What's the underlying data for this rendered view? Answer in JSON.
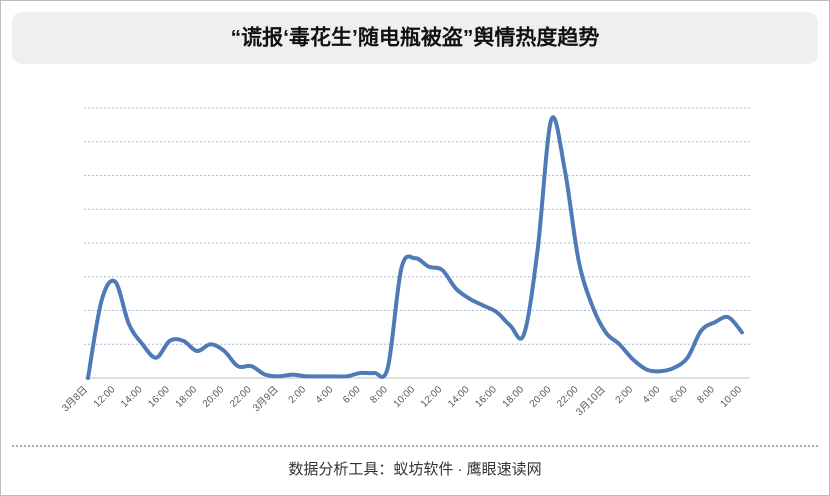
{
  "chart_data": {
    "type": "line",
    "title": "“谎报‘毒花生’随电瓶被盗”舆情热度趋势",
    "footer": "数据分析工具：蚁坊软件 · 鹰眼速读网",
    "categories": [
      "3月8日",
      null,
      "12:00",
      null,
      "14:00",
      null,
      "16:00",
      null,
      "18:00",
      null,
      "20:00",
      null,
      "22:00",
      null,
      "3月9日",
      null,
      "2:00",
      null,
      "4:00",
      null,
      "6:00",
      null,
      "8:00",
      null,
      "10:00",
      null,
      "12:00",
      null,
      "14:00",
      null,
      "16:00",
      null,
      "18:00",
      null,
      "20:00",
      null,
      "22:00",
      null,
      "3月10日",
      null,
      "2:00",
      null,
      "4:00",
      null,
      "6:00",
      null,
      "8:00",
      null,
      "10:00"
    ],
    "series": [
      {
        "color": "#4e7bb5",
        "values": [
          0,
          2.3,
          2.85,
          1.6,
          1.0,
          0.6,
          1.1,
          1.1,
          0.8,
          1.0,
          0.8,
          0.35,
          0.35,
          0.1,
          0.05,
          0.1,
          0.05,
          0.05,
          0.05,
          0.05,
          0.15,
          0.15,
          0.3,
          3.25,
          3.55,
          3.3,
          3.2,
          2.65,
          2.35,
          2.15,
          1.95,
          1.55,
          1.3,
          3.8,
          7.65,
          6.15,
          3.5,
          2.15,
          1.35,
          1.0,
          0.55,
          0.25,
          0.2,
          0.3,
          0.6,
          1.4,
          1.65,
          1.8,
          1.35
        ]
      }
    ],
    "ylim": [
      0,
      8
    ],
    "yticks": [
      0,
      1,
      2,
      3,
      4,
      5,
      6,
      7,
      8
    ],
    "grid": true,
    "show_y_tick_labels": false
  }
}
